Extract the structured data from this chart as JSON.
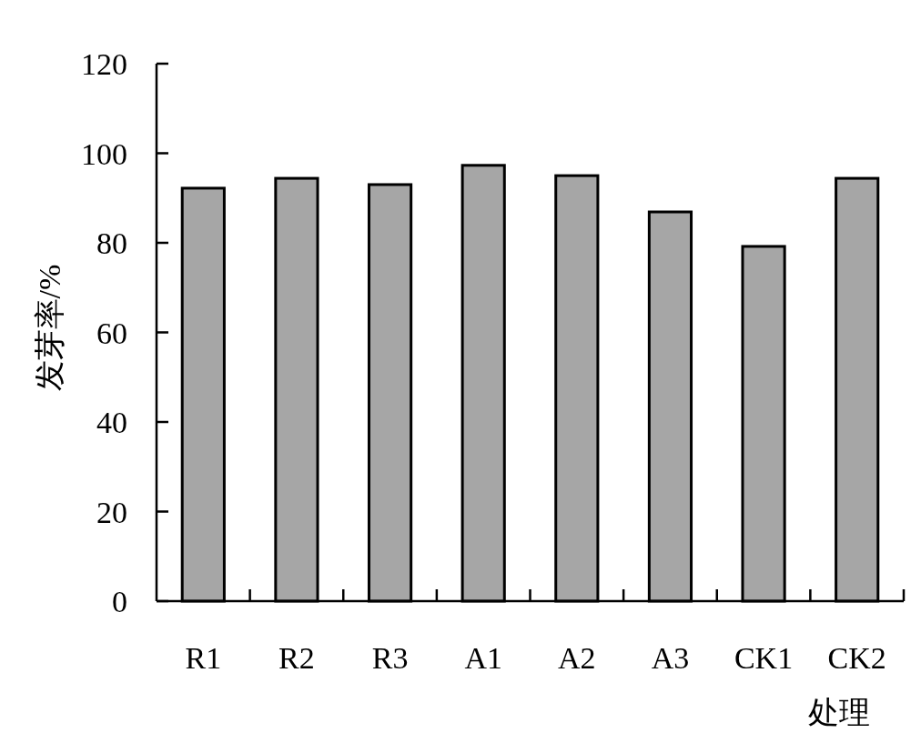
{
  "chart_data": {
    "type": "bar",
    "xlabel": "处理",
    "ylabel": "发芽率/%",
    "categories": [
      "R1",
      "R2",
      "R3",
      "A1",
      "A2",
      "A3",
      "CK1",
      "CK2"
    ],
    "values": [
      92.2,
      94.4,
      93.0,
      97.3,
      95.0,
      86.9,
      79.2,
      94.4
    ],
    "color": "#a6a6a6",
    "ylim": [
      0,
      120
    ],
    "yticks": [
      0,
      20,
      40,
      60,
      80,
      100,
      120
    ]
  }
}
